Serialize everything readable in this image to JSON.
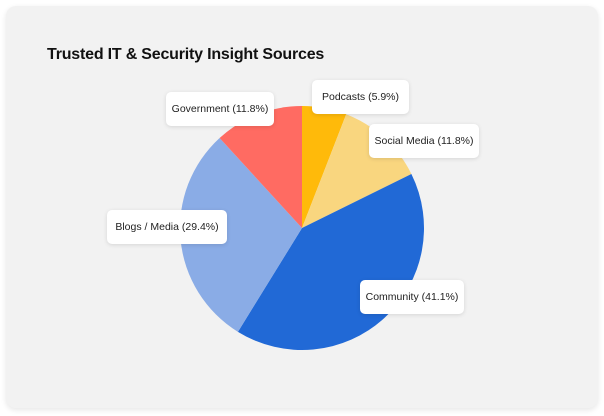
{
  "chart_data": {
    "type": "pie",
    "title": "Trusted IT & Security Insight Sources",
    "categories": [
      "Podcasts",
      "Social Media",
      "Community",
      "Blogs / Media",
      "Government"
    ],
    "values": [
      5.9,
      11.8,
      41.1,
      29.4,
      11.8
    ],
    "colors": [
      "#ffba0a",
      "#f9d67f",
      "#2169d6",
      "#8aace6",
      "#ff6b62"
    ],
    "labels": [
      "Podcasts (5.9%)",
      "Social Media (11.8%)",
      "Community (41.1%)",
      "Blogs / Media (29.4%)",
      "Government (11.8%)"
    ],
    "start_angle": "12 o'clock, clockwise",
    "legend": "none (callout labels)"
  },
  "card": {
    "background": "#f2f2f2"
  }
}
